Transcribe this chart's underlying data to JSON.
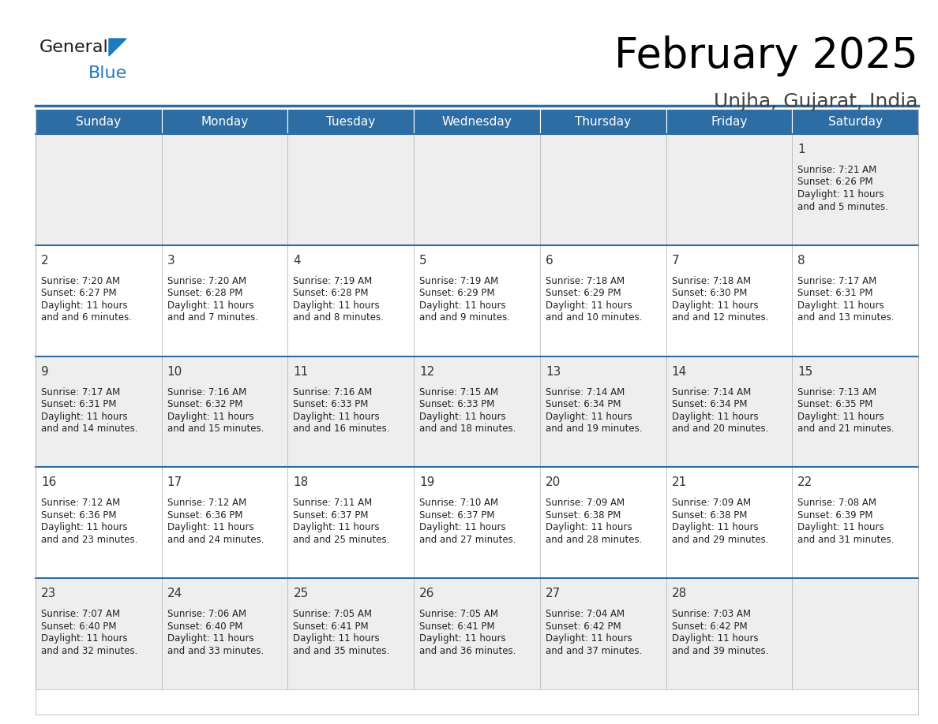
{
  "title": "February 2025",
  "subtitle": "Unjha, Gujarat, India",
  "header_color": "#2E6DA4",
  "header_text_color": "#FFFFFF",
  "cell_bg_row0": "#EEEEEE",
  "cell_bg_row1": "#FFFFFF",
  "border_color": "#AAAAAA",
  "week_border_color": "#2E6DA4",
  "days_of_week": [
    "Sunday",
    "Monday",
    "Tuesday",
    "Wednesday",
    "Thursday",
    "Friday",
    "Saturday"
  ],
  "calendar_data": [
    [
      null,
      null,
      null,
      null,
      null,
      null,
      {
        "day": "1",
        "sunrise": "7:21 AM",
        "sunset": "6:26 PM",
        "daylight": "11 hours and 5 minutes."
      }
    ],
    [
      {
        "day": "2",
        "sunrise": "7:20 AM",
        "sunset": "6:27 PM",
        "daylight": "11 hours and 6 minutes."
      },
      {
        "day": "3",
        "sunrise": "7:20 AM",
        "sunset": "6:28 PM",
        "daylight": "11 hours and 7 minutes."
      },
      {
        "day": "4",
        "sunrise": "7:19 AM",
        "sunset": "6:28 PM",
        "daylight": "11 hours and 8 minutes."
      },
      {
        "day": "5",
        "sunrise": "7:19 AM",
        "sunset": "6:29 PM",
        "daylight": "11 hours and 9 minutes."
      },
      {
        "day": "6",
        "sunrise": "7:18 AM",
        "sunset": "6:29 PM",
        "daylight": "11 hours and 10 minutes."
      },
      {
        "day": "7",
        "sunrise": "7:18 AM",
        "sunset": "6:30 PM",
        "daylight": "11 hours and 12 minutes."
      },
      {
        "day": "8",
        "sunrise": "7:17 AM",
        "sunset": "6:31 PM",
        "daylight": "11 hours and 13 minutes."
      }
    ],
    [
      {
        "day": "9",
        "sunrise": "7:17 AM",
        "sunset": "6:31 PM",
        "daylight": "11 hours and 14 minutes."
      },
      {
        "day": "10",
        "sunrise": "7:16 AM",
        "sunset": "6:32 PM",
        "daylight": "11 hours and 15 minutes."
      },
      {
        "day": "11",
        "sunrise": "7:16 AM",
        "sunset": "6:33 PM",
        "daylight": "11 hours and 16 minutes."
      },
      {
        "day": "12",
        "sunrise": "7:15 AM",
        "sunset": "6:33 PM",
        "daylight": "11 hours and 18 minutes."
      },
      {
        "day": "13",
        "sunrise": "7:14 AM",
        "sunset": "6:34 PM",
        "daylight": "11 hours and 19 minutes."
      },
      {
        "day": "14",
        "sunrise": "7:14 AM",
        "sunset": "6:34 PM",
        "daylight": "11 hours and 20 minutes."
      },
      {
        "day": "15",
        "sunrise": "7:13 AM",
        "sunset": "6:35 PM",
        "daylight": "11 hours and 21 minutes."
      }
    ],
    [
      {
        "day": "16",
        "sunrise": "7:12 AM",
        "sunset": "6:36 PM",
        "daylight": "11 hours and 23 minutes."
      },
      {
        "day": "17",
        "sunrise": "7:12 AM",
        "sunset": "6:36 PM",
        "daylight": "11 hours and 24 minutes."
      },
      {
        "day": "18",
        "sunrise": "7:11 AM",
        "sunset": "6:37 PM",
        "daylight": "11 hours and 25 minutes."
      },
      {
        "day": "19",
        "sunrise": "7:10 AM",
        "sunset": "6:37 PM",
        "daylight": "11 hours and 27 minutes."
      },
      {
        "day": "20",
        "sunrise": "7:09 AM",
        "sunset": "6:38 PM",
        "daylight": "11 hours and 28 minutes."
      },
      {
        "day": "21",
        "sunrise": "7:09 AM",
        "sunset": "6:38 PM",
        "daylight": "11 hours and 29 minutes."
      },
      {
        "day": "22",
        "sunrise": "7:08 AM",
        "sunset": "6:39 PM",
        "daylight": "11 hours and 31 minutes."
      }
    ],
    [
      {
        "day": "23",
        "sunrise": "7:07 AM",
        "sunset": "6:40 PM",
        "daylight": "11 hours and 32 minutes."
      },
      {
        "day": "24",
        "sunrise": "7:06 AM",
        "sunset": "6:40 PM",
        "daylight": "11 hours and 33 minutes."
      },
      {
        "day": "25",
        "sunrise": "7:05 AM",
        "sunset": "6:41 PM",
        "daylight": "11 hours and 35 minutes."
      },
      {
        "day": "26",
        "sunrise": "7:05 AM",
        "sunset": "6:41 PM",
        "daylight": "11 hours and 36 minutes."
      },
      {
        "day": "27",
        "sunrise": "7:04 AM",
        "sunset": "6:42 PM",
        "daylight": "11 hours and 37 minutes."
      },
      {
        "day": "28",
        "sunrise": "7:03 AM",
        "sunset": "6:42 PM",
        "daylight": "11 hours and 39 minutes."
      },
      null
    ]
  ],
  "logo_text1": "General",
  "logo_text2": "Blue",
  "logo_color1": "#1a1a1a",
  "logo_color2": "#1e7abf",
  "logo_triangle_color": "#1e7abf",
  "title_fontsize": 38,
  "subtitle_fontsize": 18,
  "dow_fontsize": 11,
  "day_num_fontsize": 11,
  "cell_text_fontsize": 8.5
}
